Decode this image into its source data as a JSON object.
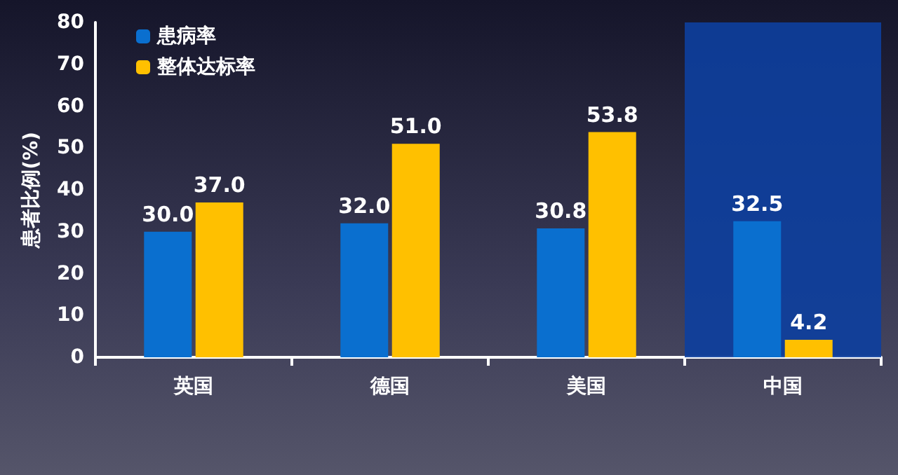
{
  "chart_data": {
    "type": "bar",
    "ylabel": "患者比例(%)",
    "categories": [
      "英国",
      "德国",
      "美国",
      "中国"
    ],
    "series": [
      {
        "name": "患病率",
        "color": "#0a6fcf",
        "values": [
          30.0,
          32.0,
          30.8,
          32.5
        ]
      },
      {
        "name": "整体达标率",
        "color": "#ffc000",
        "values": [
          37.0,
          51.0,
          53.8,
          4.2
        ]
      }
    ],
    "value_labels": [
      [
        "30.0",
        "32.0",
        "30.8",
        "32.5"
      ],
      [
        "37.0",
        "51.0",
        "53.8",
        "4.2"
      ]
    ],
    "bands": [
      {
        "axis": "x",
        "from": "中国",
        "to": "中国",
        "color": "#0d3f9e"
      }
    ],
    "ylim": [
      0,
      80
    ],
    "yticks": [
      0,
      10,
      20,
      30,
      40,
      50,
      60,
      70,
      80
    ],
    "grid": false,
    "legend": "top left"
  }
}
